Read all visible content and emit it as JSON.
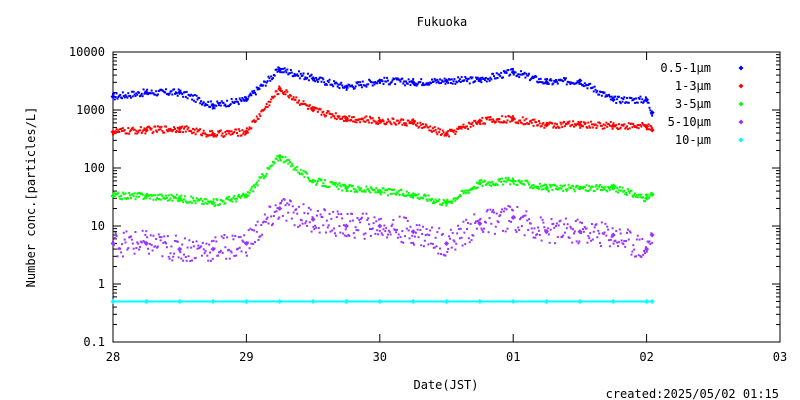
{
  "chart_data": {
    "type": "scatter",
    "title": "Fukuoka",
    "xlabel": "Date(JST)",
    "ylabel": "Number conc.[particles/L]",
    "yscale": "log",
    "ylim": [
      0.1,
      10000
    ],
    "xlim": [
      "2025-04-28",
      "2025-05-03"
    ],
    "x_tick_labels": [
      "28",
      "29",
      "30",
      "01",
      "02",
      "03"
    ],
    "y_tick_labels": [
      "0.1",
      "1",
      "10",
      "100",
      "1000",
      "10000"
    ],
    "legend_position": "top-right",
    "footer": "created:2025/05/02 01:15",
    "x_dates": [
      "2025-04-28 00:00",
      "2025-04-28 06:00",
      "2025-04-28 12:00",
      "2025-04-28 18:00",
      "2025-04-29 00:00",
      "2025-04-29 06:00",
      "2025-04-29 12:00",
      "2025-04-29 18:00",
      "2025-04-30 00:00",
      "2025-04-30 06:00",
      "2025-04-30 12:00",
      "2025-04-30 18:00",
      "2025-05-01 00:00",
      "2025-05-01 06:00",
      "2025-05-01 12:00",
      "2025-05-01 18:00",
      "2025-05-02 00:00",
      "2025-05-02 01:00"
    ],
    "series": [
      {
        "name": "0.5-1μm",
        "color": "#0000ff",
        "values": [
          1700,
          2000,
          2000,
          1200,
          1500,
          5000,
          3500,
          2500,
          3200,
          3000,
          3200,
          3300,
          4500,
          3000,
          3200,
          1500,
          1500,
          900
        ]
      },
      {
        "name": "1-3μm",
        "color": "#ff0000",
        "values": [
          420,
          450,
          480,
          380,
          420,
          2300,
          1000,
          720,
          650,
          600,
          380,
          650,
          700,
          550,
          560,
          540,
          520,
          450
        ]
      },
      {
        "name": "3-5μm",
        "color": "#00ff00",
        "values": [
          33,
          33,
          30,
          25,
          33,
          160,
          60,
          45,
          40,
          35,
          25,
          55,
          60,
          45,
          45,
          45,
          30,
          35
        ]
      },
      {
        "name": "5-10μm",
        "color": "#9933ff",
        "values": [
          5,
          5,
          4,
          4,
          5,
          20,
          13,
          10,
          10,
          8,
          5,
          11,
          14,
          8,
          8,
          7,
          4,
          7
        ]
      },
      {
        "name": "10-μm",
        "color": "#00ffff",
        "values": [
          0.5,
          0.5,
          0.5,
          0.5,
          0.5,
          0.5,
          0.5,
          0.5,
          0.5,
          0.5,
          0.5,
          0.5,
          0.5,
          0.5,
          0.5,
          0.5,
          0.5,
          0.5
        ]
      }
    ]
  }
}
